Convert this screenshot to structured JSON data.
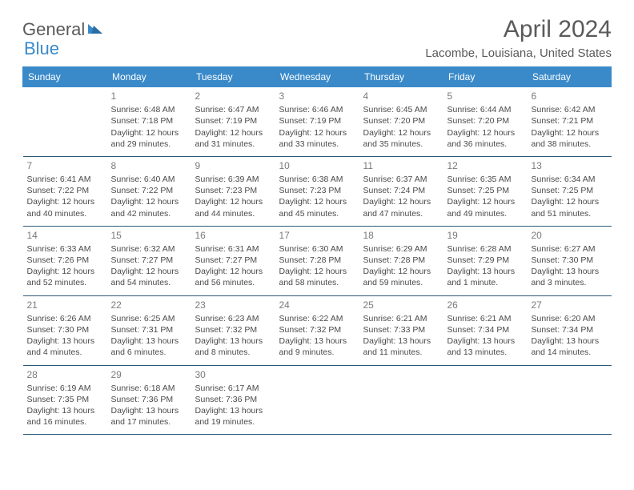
{
  "logo": {
    "general": "General",
    "blue": "Blue"
  },
  "header": {
    "title": "April 2024",
    "location": "Lacombe, Louisiana, United States"
  },
  "weekdays": [
    "Sunday",
    "Monday",
    "Tuesday",
    "Wednesday",
    "Thursday",
    "Friday",
    "Saturday"
  ],
  "colors": {
    "header_bg": "#3a8ac9",
    "header_text": "#ffffff",
    "cell_border": "#2b5a7a",
    "text": "#4a4a4a",
    "daynum": "#7a7a7a",
    "title": "#5a5a5a",
    "logo_accent": "#3a8ac9"
  },
  "weeks": [
    [
      null,
      {
        "n": "1",
        "sunrise": "Sunrise: 6:48 AM",
        "sunset": "Sunset: 7:18 PM",
        "daylight": "Daylight: 12 hours and 29 minutes."
      },
      {
        "n": "2",
        "sunrise": "Sunrise: 6:47 AM",
        "sunset": "Sunset: 7:19 PM",
        "daylight": "Daylight: 12 hours and 31 minutes."
      },
      {
        "n": "3",
        "sunrise": "Sunrise: 6:46 AM",
        "sunset": "Sunset: 7:19 PM",
        "daylight": "Daylight: 12 hours and 33 minutes."
      },
      {
        "n": "4",
        "sunrise": "Sunrise: 6:45 AM",
        "sunset": "Sunset: 7:20 PM",
        "daylight": "Daylight: 12 hours and 35 minutes."
      },
      {
        "n": "5",
        "sunrise": "Sunrise: 6:44 AM",
        "sunset": "Sunset: 7:20 PM",
        "daylight": "Daylight: 12 hours and 36 minutes."
      },
      {
        "n": "6",
        "sunrise": "Sunrise: 6:42 AM",
        "sunset": "Sunset: 7:21 PM",
        "daylight": "Daylight: 12 hours and 38 minutes."
      }
    ],
    [
      {
        "n": "7",
        "sunrise": "Sunrise: 6:41 AM",
        "sunset": "Sunset: 7:22 PM",
        "daylight": "Daylight: 12 hours and 40 minutes."
      },
      {
        "n": "8",
        "sunrise": "Sunrise: 6:40 AM",
        "sunset": "Sunset: 7:22 PM",
        "daylight": "Daylight: 12 hours and 42 minutes."
      },
      {
        "n": "9",
        "sunrise": "Sunrise: 6:39 AM",
        "sunset": "Sunset: 7:23 PM",
        "daylight": "Daylight: 12 hours and 44 minutes."
      },
      {
        "n": "10",
        "sunrise": "Sunrise: 6:38 AM",
        "sunset": "Sunset: 7:23 PM",
        "daylight": "Daylight: 12 hours and 45 minutes."
      },
      {
        "n": "11",
        "sunrise": "Sunrise: 6:37 AM",
        "sunset": "Sunset: 7:24 PM",
        "daylight": "Daylight: 12 hours and 47 minutes."
      },
      {
        "n": "12",
        "sunrise": "Sunrise: 6:35 AM",
        "sunset": "Sunset: 7:25 PM",
        "daylight": "Daylight: 12 hours and 49 minutes."
      },
      {
        "n": "13",
        "sunrise": "Sunrise: 6:34 AM",
        "sunset": "Sunset: 7:25 PM",
        "daylight": "Daylight: 12 hours and 51 minutes."
      }
    ],
    [
      {
        "n": "14",
        "sunrise": "Sunrise: 6:33 AM",
        "sunset": "Sunset: 7:26 PM",
        "daylight": "Daylight: 12 hours and 52 minutes."
      },
      {
        "n": "15",
        "sunrise": "Sunrise: 6:32 AM",
        "sunset": "Sunset: 7:27 PM",
        "daylight": "Daylight: 12 hours and 54 minutes."
      },
      {
        "n": "16",
        "sunrise": "Sunrise: 6:31 AM",
        "sunset": "Sunset: 7:27 PM",
        "daylight": "Daylight: 12 hours and 56 minutes."
      },
      {
        "n": "17",
        "sunrise": "Sunrise: 6:30 AM",
        "sunset": "Sunset: 7:28 PM",
        "daylight": "Daylight: 12 hours and 58 minutes."
      },
      {
        "n": "18",
        "sunrise": "Sunrise: 6:29 AM",
        "sunset": "Sunset: 7:28 PM",
        "daylight": "Daylight: 12 hours and 59 minutes."
      },
      {
        "n": "19",
        "sunrise": "Sunrise: 6:28 AM",
        "sunset": "Sunset: 7:29 PM",
        "daylight": "Daylight: 13 hours and 1 minute."
      },
      {
        "n": "20",
        "sunrise": "Sunrise: 6:27 AM",
        "sunset": "Sunset: 7:30 PM",
        "daylight": "Daylight: 13 hours and 3 minutes."
      }
    ],
    [
      {
        "n": "21",
        "sunrise": "Sunrise: 6:26 AM",
        "sunset": "Sunset: 7:30 PM",
        "daylight": "Daylight: 13 hours and 4 minutes."
      },
      {
        "n": "22",
        "sunrise": "Sunrise: 6:25 AM",
        "sunset": "Sunset: 7:31 PM",
        "daylight": "Daylight: 13 hours and 6 minutes."
      },
      {
        "n": "23",
        "sunrise": "Sunrise: 6:23 AM",
        "sunset": "Sunset: 7:32 PM",
        "daylight": "Daylight: 13 hours and 8 minutes."
      },
      {
        "n": "24",
        "sunrise": "Sunrise: 6:22 AM",
        "sunset": "Sunset: 7:32 PM",
        "daylight": "Daylight: 13 hours and 9 minutes."
      },
      {
        "n": "25",
        "sunrise": "Sunrise: 6:21 AM",
        "sunset": "Sunset: 7:33 PM",
        "daylight": "Daylight: 13 hours and 11 minutes."
      },
      {
        "n": "26",
        "sunrise": "Sunrise: 6:21 AM",
        "sunset": "Sunset: 7:34 PM",
        "daylight": "Daylight: 13 hours and 13 minutes."
      },
      {
        "n": "27",
        "sunrise": "Sunrise: 6:20 AM",
        "sunset": "Sunset: 7:34 PM",
        "daylight": "Daylight: 13 hours and 14 minutes."
      }
    ],
    [
      {
        "n": "28",
        "sunrise": "Sunrise: 6:19 AM",
        "sunset": "Sunset: 7:35 PM",
        "daylight": "Daylight: 13 hours and 16 minutes."
      },
      {
        "n": "29",
        "sunrise": "Sunrise: 6:18 AM",
        "sunset": "Sunset: 7:36 PM",
        "daylight": "Daylight: 13 hours and 17 minutes."
      },
      {
        "n": "30",
        "sunrise": "Sunrise: 6:17 AM",
        "sunset": "Sunset: 7:36 PM",
        "daylight": "Daylight: 13 hours and 19 minutes."
      },
      null,
      null,
      null,
      null
    ]
  ]
}
